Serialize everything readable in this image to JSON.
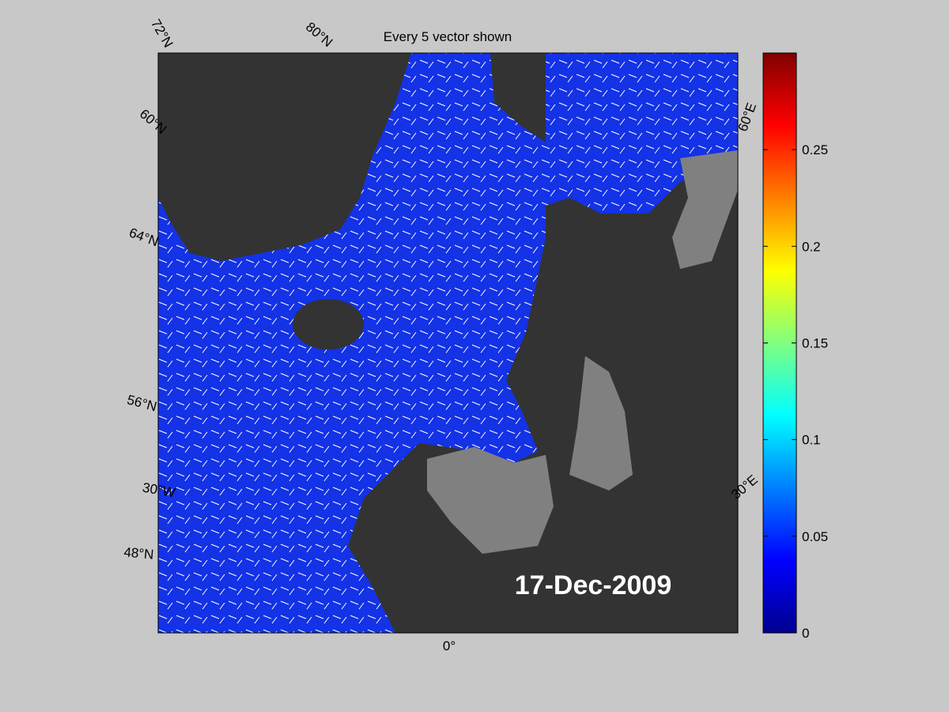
{
  "title": "Every 5 vector shown",
  "date_label": "17-Dec-2009",
  "grid_labels": [
    "72°N",
    "80°N",
    "60°N",
    "64°N",
    "56°N",
    "30°W",
    "48°N",
    "0°",
    "30°E",
    "60°E"
  ],
  "colorbar": {
    "lim": [
      0,
      0.3
    ],
    "ticks": [
      0,
      0.05,
      0.1,
      0.15,
      0.2,
      0.25
    ]
  }
}
